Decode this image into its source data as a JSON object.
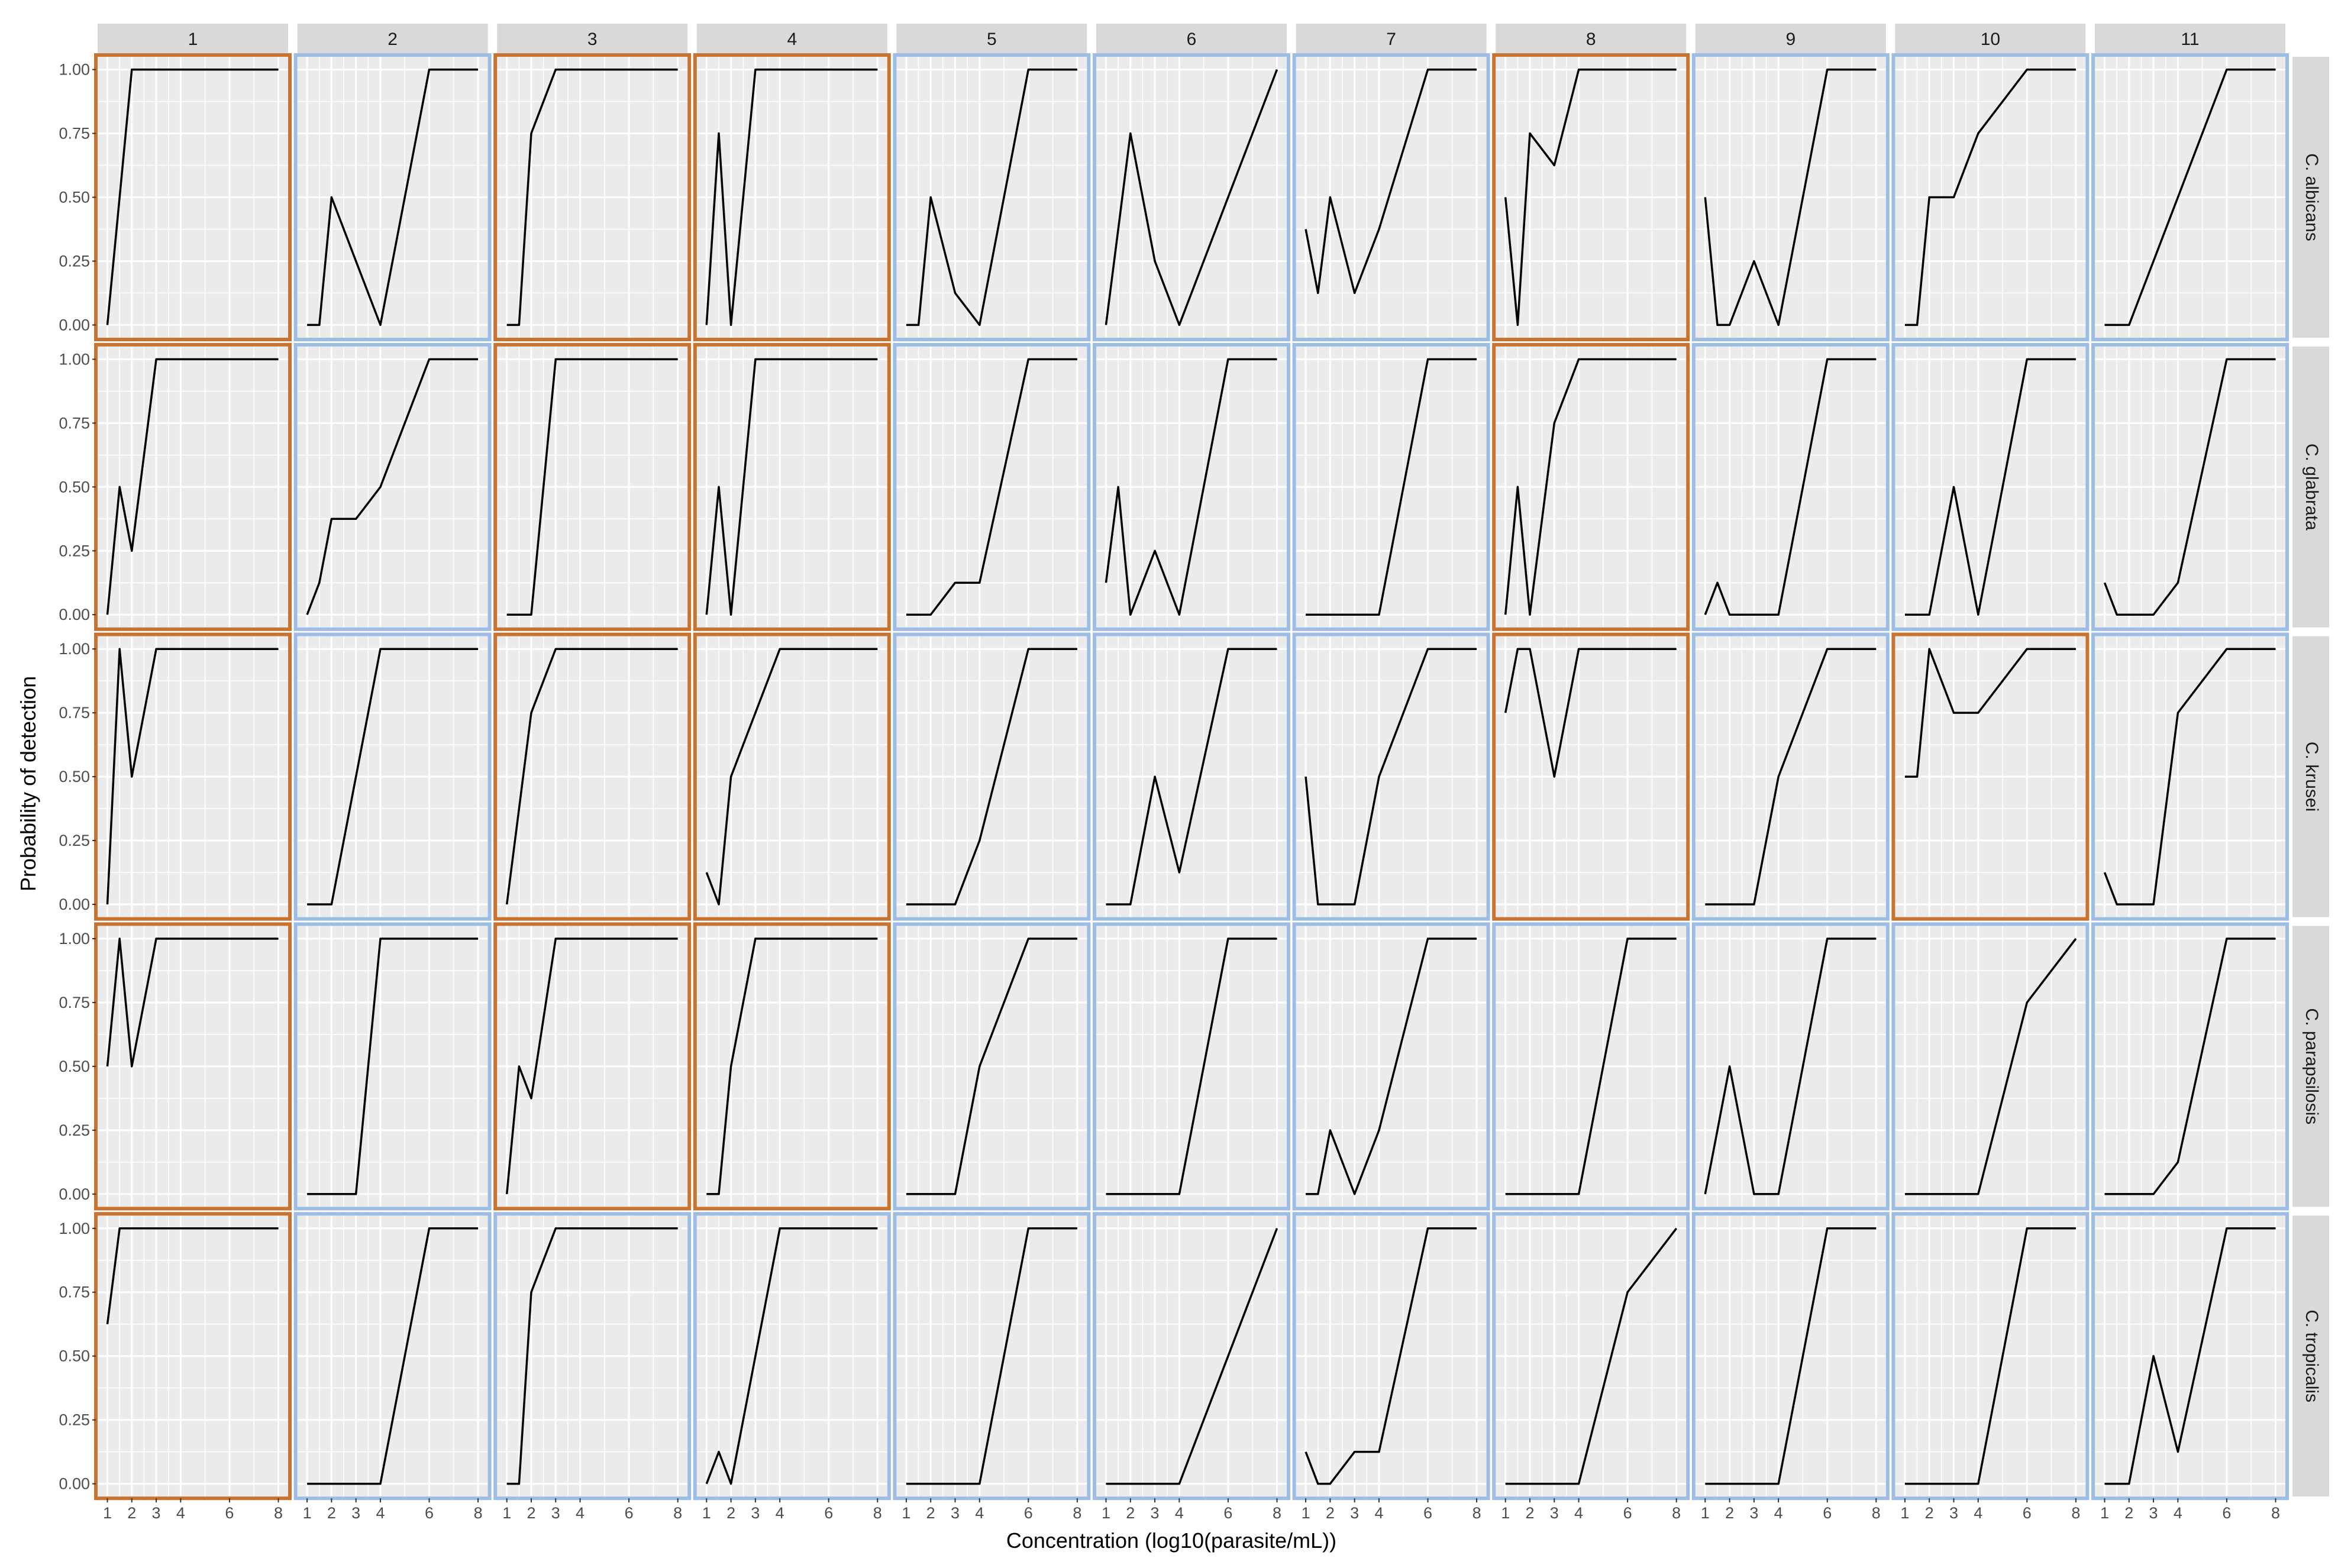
{
  "chart_data": {
    "type": "line",
    "facet_columns": [
      "1",
      "2",
      "3",
      "4",
      "5",
      "6",
      "7",
      "8",
      "9",
      "10",
      "11"
    ],
    "facet_rows": [
      "C. albicans",
      "C. glabrata",
      "C. krusei",
      "C. parapsilosis",
      "C. tropicalis"
    ],
    "xlabel": "Concentration (log10(parasite/mL))",
    "ylabel": "Probability of detection",
    "x_ticks": [
      1,
      2,
      3,
      4,
      6,
      8
    ],
    "x_tick_labels": [
      "1",
      "2",
      "3",
      "4",
      "6",
      "8"
    ],
    "y_ticks": [
      0,
      0.25,
      0.5,
      0.75,
      1
    ],
    "y_tick_labels": [
      "0.00",
      "0.25",
      "0.50",
      "0.75",
      "1.00"
    ],
    "xlim": [
      0.6,
      8.4
    ],
    "ylim": [
      -0.05,
      1.05
    ],
    "grid": true,
    "panel_background": "#ebebeb",
    "grid_color": "#ffffff",
    "strip_background": "#d9d9d9",
    "line_color": "#000000",
    "highlight_colors": {
      "orange": "#c8732f",
      "blue": "#9dbde4"
    },
    "x": [
      1,
      1.5,
      2,
      3,
      4,
      6,
      8
    ],
    "panels": [
      [
        {
          "border": "orange",
          "y": [
            0,
            0.5,
            1,
            1,
            1,
            1,
            1
          ]
        },
        {
          "border": "blue",
          "y": [
            0,
            0,
            0.5,
            0.25,
            0,
            1,
            1
          ]
        },
        {
          "border": "orange",
          "y": [
            0,
            0,
            0.75,
            1,
            1,
            1,
            1
          ]
        },
        {
          "border": "orange",
          "y": [
            0,
            0.75,
            0,
            1,
            1,
            1,
            1
          ]
        },
        {
          "border": "blue",
          "y": [
            0,
            0,
            0.5,
            0.125,
            0,
            1,
            1
          ]
        },
        {
          "border": "blue",
          "y": [
            0,
            0.375,
            0.75,
            0.25,
            0,
            0.5,
            1
          ]
        },
        {
          "border": "blue",
          "y": [
            0.375,
            0.125,
            0.5,
            0.125,
            0.375,
            1,
            1
          ]
        },
        {
          "border": "orange",
          "y": [
            0.5,
            0,
            0.75,
            0.625,
            1,
            1,
            1
          ]
        },
        {
          "border": "blue",
          "y": [
            0.5,
            0,
            0,
            0.25,
            0,
            1,
            1
          ]
        },
        {
          "border": "blue",
          "y": [
            0,
            0,
            0.5,
            0.5,
            0.75,
            1,
            1
          ]
        },
        {
          "border": "blue",
          "y": [
            0,
            0,
            0,
            0.25,
            0.5,
            1,
            1
          ]
        }
      ],
      [
        {
          "border": "orange",
          "y": [
            0,
            0.5,
            0.25,
            1,
            1,
            1,
            1
          ]
        },
        {
          "border": "blue",
          "y": [
            0,
            0.125,
            0.375,
            0.375,
            0.5,
            1,
            1
          ]
        },
        {
          "border": "orange",
          "y": [
            0,
            0,
            0,
            1,
            1,
            1,
            1
          ]
        },
        {
          "border": "orange",
          "y": [
            0,
            0.5,
            0,
            1,
            1,
            1,
            1
          ]
        },
        {
          "border": "blue",
          "y": [
            0,
            0,
            0,
            0.125,
            0.125,
            1,
            1
          ]
        },
        {
          "border": "blue",
          "y": [
            0.125,
            0.5,
            0,
            0.25,
            0,
            1,
            1
          ]
        },
        {
          "border": "blue",
          "y": [
            0,
            0,
            0,
            0,
            0,
            1,
            1
          ]
        },
        {
          "border": "orange",
          "y": [
            0,
            0.5,
            0,
            0.75,
            1,
            1,
            1
          ]
        },
        {
          "border": "blue",
          "y": [
            0,
            0.125,
            0,
            0,
            0,
            1,
            1
          ]
        },
        {
          "border": "blue",
          "y": [
            0,
            0,
            0,
            0.5,
            0,
            1,
            1
          ]
        },
        {
          "border": "blue",
          "y": [
            0.125,
            0,
            0,
            0,
            0.125,
            1,
            1
          ]
        }
      ],
      [
        {
          "border": "orange",
          "y": [
            0,
            1,
            0.5,
            1,
            1,
            1,
            1
          ]
        },
        {
          "border": "blue",
          "y": [
            0,
            0,
            0,
            0.5,
            1,
            1,
            1
          ]
        },
        {
          "border": "orange",
          "y": [
            0,
            0.375,
            0.75,
            1,
            1,
            1,
            1
          ]
        },
        {
          "border": "orange",
          "y": [
            0.125,
            0,
            0.5,
            0.75,
            1,
            1,
            1
          ]
        },
        {
          "border": "blue",
          "y": [
            0,
            0,
            0,
            0,
            0.25,
            1,
            1
          ]
        },
        {
          "border": "blue",
          "y": [
            0,
            0,
            0,
            0.5,
            0.125,
            1,
            1
          ]
        },
        {
          "border": "blue",
          "y": [
            0.5,
            0,
            0,
            0,
            0.5,
            1,
            1
          ]
        },
        {
          "border": "orange",
          "y": [
            0.75,
            1,
            1,
            0.5,
            1,
            1,
            1
          ]
        },
        {
          "border": "blue",
          "y": [
            0,
            0,
            0,
            0,
            0.5,
            1,
            1
          ]
        },
        {
          "border": "orange",
          "y": [
            0.5,
            0.5,
            1,
            0.75,
            0.75,
            1,
            1
          ]
        },
        {
          "border": "blue",
          "y": [
            0.125,
            0,
            0,
            0,
            0.75,
            1,
            1
          ]
        }
      ],
      [
        {
          "border": "orange",
          "y": [
            0.5,
            1,
            0.5,
            1,
            1,
            1,
            1
          ]
        },
        {
          "border": "blue",
          "y": [
            0,
            0,
            0,
            0,
            1,
            1,
            1
          ]
        },
        {
          "border": "orange",
          "y": [
            0,
            0.5,
            0.375,
            1,
            1,
            1,
            1
          ]
        },
        {
          "border": "orange",
          "y": [
            0,
            0,
            0.5,
            1,
            1,
            1,
            1
          ]
        },
        {
          "border": "blue",
          "y": [
            0,
            0,
            0,
            0,
            0.5,
            1,
            1
          ]
        },
        {
          "border": "blue",
          "y": [
            0,
            0,
            0,
            0,
            0,
            1,
            1
          ]
        },
        {
          "border": "blue",
          "y": [
            0,
            0,
            0.25,
            0,
            0.25,
            1,
            1
          ]
        },
        {
          "border": "blue",
          "y": [
            0,
            0,
            0,
            0,
            0,
            1,
            1
          ]
        },
        {
          "border": "blue",
          "y": [
            0,
            0.25,
            0.5,
            0,
            0,
            1,
            1
          ]
        },
        {
          "border": "blue",
          "y": [
            0,
            0,
            0,
            0,
            0,
            0.75,
            1
          ]
        },
        {
          "border": "blue",
          "y": [
            0,
            0,
            0,
            0,
            0.125,
            1,
            1
          ]
        }
      ],
      [
        {
          "border": "orange",
          "y": [
            0.625,
            1,
            1,
            1,
            1,
            1,
            1
          ]
        },
        {
          "border": "blue",
          "y": [
            0,
            0,
            0,
            0,
            0,
            1,
            1
          ]
        },
        {
          "border": "blue",
          "y": [
            0,
            0,
            0.75,
            1,
            1,
            1,
            1
          ]
        },
        {
          "border": "blue",
          "y": [
            0,
            0.125,
            0,
            0.5,
            1,
            1,
            1
          ]
        },
        {
          "border": "blue",
          "y": [
            0,
            0,
            0,
            0,
            0,
            1,
            1
          ]
        },
        {
          "border": "blue",
          "y": [
            0,
            0,
            0,
            0,
            0,
            0.5,
            1
          ]
        },
        {
          "border": "blue",
          "y": [
            0.125,
            0,
            0,
            0.125,
            0.125,
            1,
            1
          ]
        },
        {
          "border": "blue",
          "y": [
            0,
            0,
            0,
            0,
            0,
            0.75,
            1
          ]
        },
        {
          "border": "blue",
          "y": [
            0,
            0,
            0,
            0,
            0,
            1,
            1
          ]
        },
        {
          "border": "blue",
          "y": [
            0,
            0,
            0,
            0,
            0,
            1,
            1
          ]
        },
        {
          "border": "blue",
          "y": [
            0,
            0,
            0,
            0.5,
            0.125,
            1,
            1
          ]
        }
      ]
    ]
  }
}
